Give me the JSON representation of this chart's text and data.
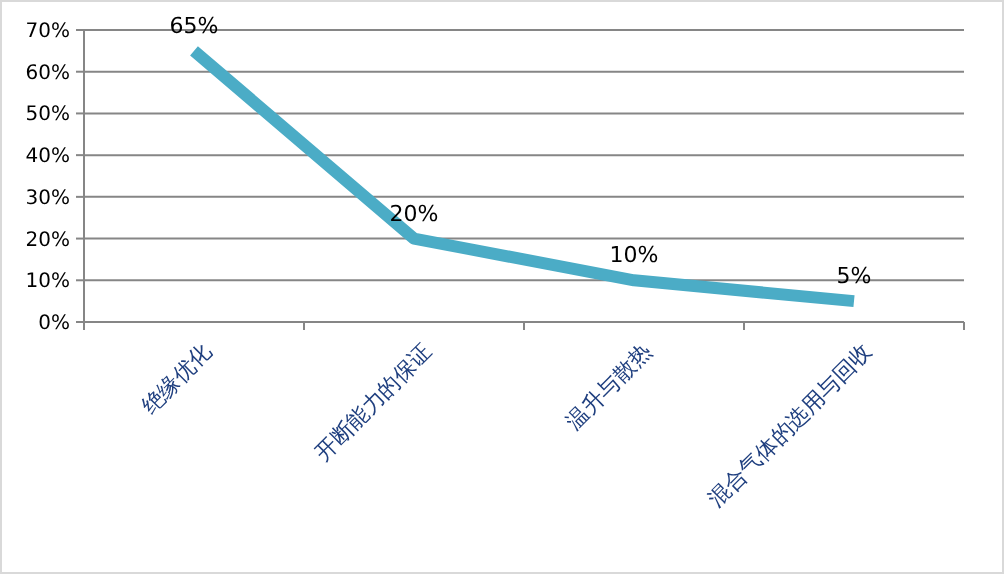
{
  "chart_data": {
    "type": "line",
    "categories": [
      "绝缘优化",
      "开断能力的保证",
      "温升与散热",
      "混合气体的选用与回收"
    ],
    "series": [
      {
        "color": "#4bacc6",
        "values": [
          65,
          20,
          10,
          5
        ],
        "value_labels": [
          "65%",
          "20%",
          "10%",
          "5%"
        ]
      }
    ],
    "ylim": [
      0,
      70
    ],
    "yticks": [
      {
        "value": 0,
        "label": "0%"
      },
      {
        "value": 10,
        "label": "10%"
      },
      {
        "value": 20,
        "label": "20%"
      },
      {
        "value": 30,
        "label": "30%"
      },
      {
        "value": 40,
        "label": "40%"
      },
      {
        "value": 50,
        "label": "50%"
      },
      {
        "value": 60,
        "label": "60%"
      },
      {
        "value": 70,
        "label": "70%"
      }
    ],
    "grid": "y",
    "marker": "none",
    "line_style": "solid"
  }
}
